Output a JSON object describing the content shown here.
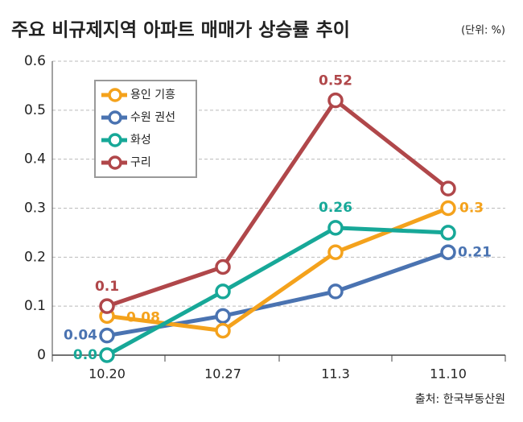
{
  "chart_data": {
    "type": "line",
    "title": "주요 비규제지역 아파트 매매가 상승률 추이",
    "unit": "(단위: %)",
    "source": "출처: 한국부동산원",
    "categories": [
      "10.20",
      "10.27",
      "11.3",
      "11.10"
    ],
    "series": [
      {
        "name": "용인 기흥",
        "color": "#f4a21c",
        "values": [
          0.08,
          0.05,
          0.21,
          0.3
        ],
        "value_labels": [
          "0.08",
          null,
          null,
          "0.3"
        ]
      },
      {
        "name": "수원 권선",
        "color": "#4a73b1",
        "values": [
          0.04,
          0.08,
          0.13,
          0.21
        ],
        "value_labels": [
          "0.04",
          null,
          null,
          "0.21"
        ]
      },
      {
        "name": "화성",
        "color": "#17a898",
        "values": [
          0,
          0.13,
          0.26,
          0.25
        ],
        "value_labels": [
          "0.0",
          null,
          "0.26",
          null
        ]
      },
      {
        "name": "구리",
        "color": "#b0474a",
        "values": [
          0.1,
          0.18,
          0.52,
          0.34
        ],
        "value_labels": [
          "0.1",
          null,
          "0.52",
          null
        ]
      }
    ],
    "ylim": [
      0,
      0.6
    ],
    "yticks": [
      0,
      0.1,
      0.2,
      0.3,
      0.4,
      0.5,
      0.6
    ],
    "grid": true
  }
}
